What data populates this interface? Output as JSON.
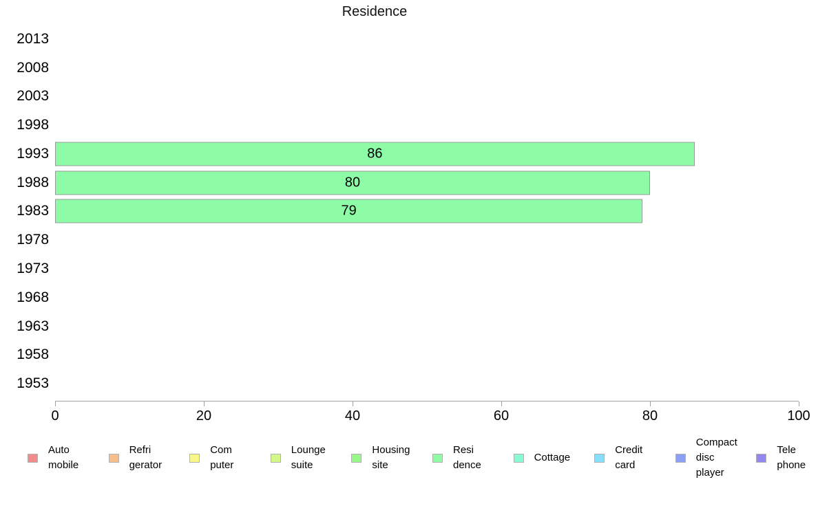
{
  "chart_data": {
    "type": "bar",
    "orientation": "horizontal",
    "title": "Residence",
    "categories": [
      "2013",
      "2008",
      "2003",
      "1998",
      "1993",
      "1988",
      "1983",
      "1978",
      "1973",
      "1968",
      "1963",
      "1958",
      "1953"
    ],
    "values": [
      null,
      null,
      null,
      null,
      86,
      80,
      79,
      null,
      null,
      null,
      null,
      null,
      null
    ],
    "xlabel": "",
    "ylabel": "",
    "xlim": [
      0,
      100
    ],
    "x_ticks": [
      0,
      20,
      40,
      60,
      80,
      100
    ],
    "grid": false,
    "bar_color": "#8EFBA6",
    "bar_border_color": "#989898",
    "axis_color": "#A0A0A0",
    "legend_position": "bottom",
    "legend": [
      {
        "label": "Auto mobile",
        "lines": [
          "Auto",
          "mobile"
        ],
        "color": "#F28B8B"
      },
      {
        "label": "Refri gerator",
        "lines": [
          "Refri",
          "gerator"
        ],
        "color": "#F6BE88"
      },
      {
        "label": "Com puter",
        "lines": [
          "Com",
          "puter"
        ],
        "color": "#F8F888"
      },
      {
        "label": "Lounge suite",
        "lines": [
          "Lounge",
          "suite"
        ],
        "color": "#D3F788"
      },
      {
        "label": "Housing site",
        "lines": [
          "Housing",
          "site"
        ],
        "color": "#97F888"
      },
      {
        "label": "Resi dence",
        "lines": [
          "Resi",
          "dence"
        ],
        "color": "#8EFBA6"
      },
      {
        "label": "Cottage",
        "lines": [
          "Cottage"
        ],
        "color": "#88F8D5"
      },
      {
        "label": "Credit card",
        "lines": [
          "Credit",
          "card"
        ],
        "color": "#88DEF8"
      },
      {
        "label": "Compact disc player",
        "lines": [
          "Compact",
          "disc",
          "player"
        ],
        "color": "#8BA0F2"
      },
      {
        "label": "Tele phone",
        "lines": [
          "Tele",
          "phone"
        ],
        "color": "#9488F0"
      }
    ]
  }
}
